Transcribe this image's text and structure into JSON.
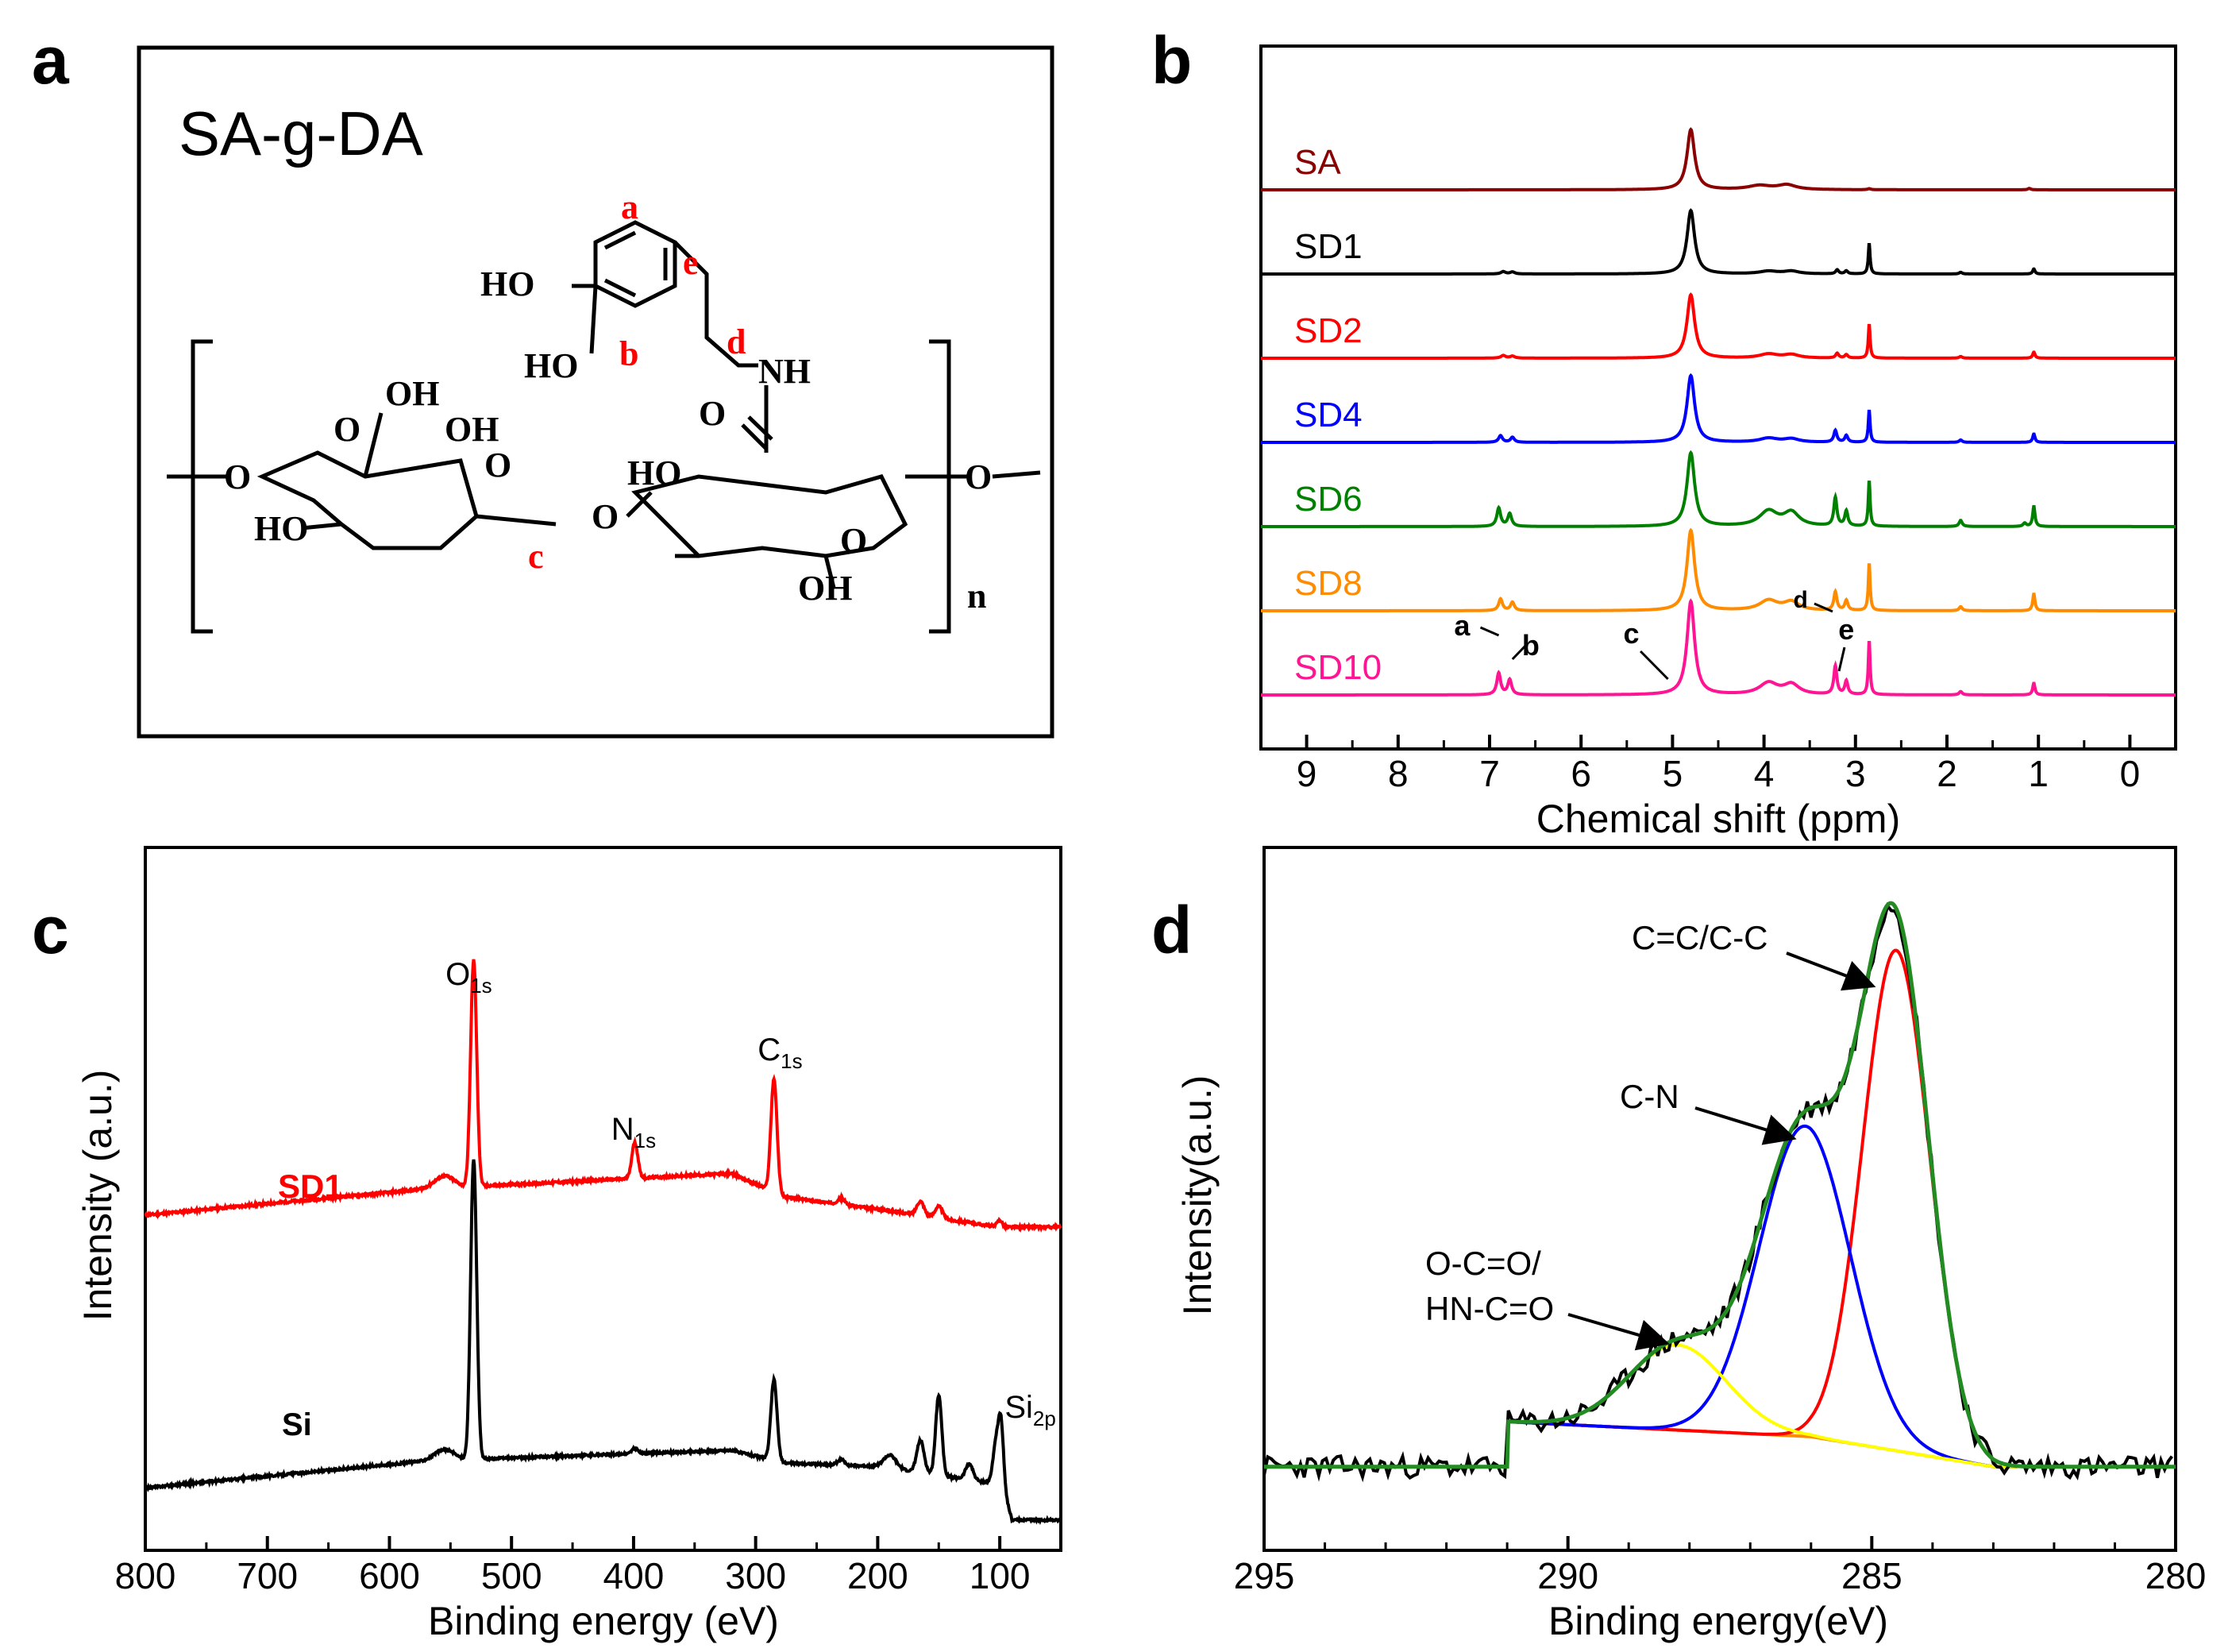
{
  "panels": {
    "a": {
      "letter": "a",
      "title": "SA-g-DA",
      "labels": {
        "a": "a",
        "b": "b",
        "c": "c",
        "d": "d",
        "e": "e",
        "ho1": "HO",
        "ho2": "HO",
        "nh": "NH",
        "o_carbonyl": "O",
        "oh_acid": "OH",
        "o_acid": "O",
        "oh_ring1": "OH",
        "ho_ring1": "HO",
        "o_ring1": "O",
        "o_bridge": "O",
        "ho_ring2": "HO",
        "o_ring2": "O",
        "oh_ring2": "OH",
        "o_left": "O",
        "o_right": "O",
        "n": "n"
      },
      "colors": {
        "label": "#ff0000",
        "structure": "#000000"
      }
    }
  },
  "chart_data": [
    {
      "panel": "b",
      "type": "line",
      "letter": "b",
      "xlabel": "Chemical shift (ppm)",
      "ylabel": "",
      "xlim": [
        9.5,
        -0.5
      ],
      "xticks": [
        9,
        8,
        7,
        6,
        5,
        4,
        3,
        2,
        1,
        0
      ],
      "peak_labels": [
        "a",
        "b",
        "c",
        "d",
        "e"
      ],
      "series": [
        {
          "name": "SA",
          "color": "#8b0000",
          "offset": 6,
          "peaks": [
            [
              4.8,
              1.8,
              0.05
            ],
            [
              4.05,
              0.12,
              0.15
            ],
            [
              3.75,
              0.14,
              0.12
            ],
            [
              2.85,
              0.03,
              0.02
            ],
            [
              1.1,
              0.04,
              0.02
            ]
          ]
        },
        {
          "name": "SD1",
          "color": "#000000",
          "offset": 5,
          "peaks": [
            [
              6.85,
              0.07,
              0.03
            ],
            [
              6.75,
              0.06,
              0.03
            ],
            [
              4.8,
              1.9,
              0.05
            ],
            [
              3.95,
              0.08,
              0.12
            ],
            [
              3.7,
              0.08,
              0.1
            ],
            [
              3.2,
              0.12,
              0.02
            ],
            [
              3.1,
              0.09,
              0.02
            ],
            [
              2.85,
              0.9,
              0.012
            ],
            [
              1.85,
              0.05,
              0.02
            ],
            [
              1.05,
              0.15,
              0.015
            ]
          ]
        },
        {
          "name": "SD2",
          "color": "#ff0000",
          "offset": 4,
          "peaks": [
            [
              6.85,
              0.08,
              0.03
            ],
            [
              6.75,
              0.06,
              0.03
            ],
            [
              4.8,
              1.9,
              0.05
            ],
            [
              3.95,
              0.12,
              0.12
            ],
            [
              3.7,
              0.1,
              0.1
            ],
            [
              3.2,
              0.14,
              0.02
            ],
            [
              3.1,
              0.1,
              0.02
            ],
            [
              2.85,
              1.0,
              0.012
            ],
            [
              1.85,
              0.05,
              0.02
            ],
            [
              1.05,
              0.18,
              0.015
            ]
          ]
        },
        {
          "name": "SD4",
          "color": "#0000ff",
          "offset": 3,
          "peaks": [
            [
              6.88,
              0.2,
              0.025
            ],
            [
              6.75,
              0.15,
              0.025
            ],
            [
              4.8,
              2.0,
              0.05
            ],
            [
              3.95,
              0.12,
              0.12
            ],
            [
              3.7,
              0.1,
              0.1
            ],
            [
              3.22,
              0.35,
              0.02
            ],
            [
              3.1,
              0.2,
              0.02
            ],
            [
              2.85,
              0.95,
              0.012
            ],
            [
              1.85,
              0.07,
              0.02
            ],
            [
              1.05,
              0.25,
              0.015
            ]
          ]
        },
        {
          "name": "SD6",
          "color": "#008000",
          "offset": 2,
          "peaks": [
            [
              6.9,
              0.55,
              0.025
            ],
            [
              6.78,
              0.38,
              0.025
            ],
            [
              4.8,
              2.2,
              0.05
            ],
            [
              3.95,
              0.45,
              0.12
            ],
            [
              3.7,
              0.4,
              0.1
            ],
            [
              3.22,
              0.85,
              0.02
            ],
            [
              3.1,
              0.45,
              0.02
            ],
            [
              2.85,
              1.35,
              0.012
            ],
            [
              1.85,
              0.18,
              0.02
            ],
            [
              1.15,
              0.1,
              0.02
            ],
            [
              1.05,
              0.6,
              0.015
            ]
          ]
        },
        {
          "name": "SD8",
          "color": "#ff8c00",
          "offset": 1,
          "peaks": [
            [
              6.88,
              0.35,
              0.025
            ],
            [
              6.75,
              0.25,
              0.025
            ],
            [
              4.8,
              2.4,
              0.05
            ],
            [
              3.95,
              0.3,
              0.12
            ],
            [
              3.7,
              0.25,
              0.1
            ],
            [
              3.22,
              0.55,
              0.02
            ],
            [
              3.1,
              0.3,
              0.02
            ],
            [
              2.85,
              1.4,
              0.012
            ],
            [
              1.85,
              0.12,
              0.02
            ],
            [
              1.05,
              0.5,
              0.015
            ]
          ]
        },
        {
          "name": "SD10",
          "color": "#ff1493",
          "offset": 0,
          "peaks": [
            [
              6.9,
              0.65,
              0.025
            ],
            [
              6.78,
              0.45,
              0.025
            ],
            [
              4.8,
              2.8,
              0.05
            ],
            [
              3.95,
              0.35,
              0.12
            ],
            [
              3.7,
              0.3,
              0.1
            ],
            [
              3.22,
              0.85,
              0.02
            ],
            [
              3.1,
              0.4,
              0.02
            ],
            [
              2.85,
              1.6,
              0.012
            ],
            [
              1.85,
              0.1,
              0.02
            ],
            [
              1.05,
              0.35,
              0.015
            ]
          ]
        }
      ]
    },
    {
      "panel": "c",
      "type": "line",
      "letter": "c",
      "xlabel": "Binding energy (eV)",
      "ylabel": "Intensity (a.u.)",
      "xlim": [
        800,
        50
      ],
      "xticks": [
        800,
        700,
        600,
        500,
        400,
        300,
        200,
        100
      ],
      "peak_labels": {
        "o1s": "O",
        "o1s_sub": "1s",
        "n1s": "N",
        "n1s_sub": "1s",
        "c1s": "C",
        "c1s_sub": "1s",
        "si2p": "Si",
        "si2p_sub": "2p"
      },
      "series": [
        {
          "name": "SD1",
          "color": "#ff0000",
          "baseline": [
            [
              800,
              0.1
            ],
            [
              570,
              0.32
            ],
            [
              320,
              0.45
            ],
            [
              275,
              0.25
            ],
            [
              200,
              0.15
            ],
            [
              100,
              0.0
            ],
            [
              50,
              0.0
            ]
          ],
          "peaks": [
            [
              555,
              0.1,
              8
            ],
            [
              531,
              1.9,
              2.5
            ],
            [
              399,
              0.3,
              2.5
            ],
            [
              285,
              0.95,
              2.5
            ],
            [
              230,
              0.05,
              3
            ],
            [
              165,
              0.12,
              3
            ],
            [
              150,
              0.1,
              3
            ],
            [
              100,
              0.06,
              2
            ]
          ]
        },
        {
          "name": "Si",
          "color": "#000000",
          "baseline": [
            [
              800,
              0.05
            ],
            [
              570,
              0.3
            ],
            [
              320,
              0.4
            ],
            [
              275,
              0.28
            ],
            [
              200,
              0.25
            ],
            [
              110,
              0.1
            ],
            [
              97,
              0.05
            ],
            [
              90,
              -0.25
            ],
            [
              50,
              -0.25
            ]
          ],
          "peaks": [
            [
              555,
              0.1,
              8
            ],
            [
              531,
              2.8,
              2.5
            ],
            [
              399,
              0.05,
              2.5
            ],
            [
              285,
              0.75,
              2.5
            ],
            [
              230,
              0.05,
              3
            ],
            [
              190,
              0.12,
              5
            ],
            [
              165,
              0.3,
              3
            ],
            [
              150,
              0.75,
              2.5
            ],
            [
              125,
              0.15,
              3
            ],
            [
              103,
              0.4,
              2.5
            ],
            [
              99,
              0.55,
              2
            ]
          ]
        }
      ]
    },
    {
      "panel": "d",
      "type": "line",
      "letter": "d",
      "xlabel": "Binding energy(eV)",
      "ylabel": "Intensity(a.u.)",
      "xlim": [
        295,
        280
      ],
      "xticks": [
        295,
        290,
        285,
        280
      ],
      "annotations": [
        "C=C/C-C",
        "C-N",
        "O-C=O/",
        "HN-C=O"
      ],
      "components": [
        {
          "name": "C=C/C-C",
          "color": "#ff0000",
          "center": 284.6,
          "height": 1.0,
          "sigma": 0.55
        },
        {
          "name": "C-N",
          "color": "#0000ff",
          "center": 286.1,
          "height": 0.62,
          "sigma": 0.75
        },
        {
          "name": "O-C=O/HN-C=O",
          "color": "#ffff00",
          "center": 288.2,
          "height": 0.17,
          "sigma": 0.8
        }
      ],
      "background": {
        "name": "background",
        "color": "#ff8c00",
        "points": [
          [
            291,
            0.0
          ],
          [
            286,
            -0.03
          ],
          [
            284,
            -0.07
          ],
          [
            283,
            -0.09
          ],
          [
            280,
            -0.09
          ]
        ]
      },
      "envelope_color": "#228b22",
      "raw_color": "#000000"
    }
  ]
}
